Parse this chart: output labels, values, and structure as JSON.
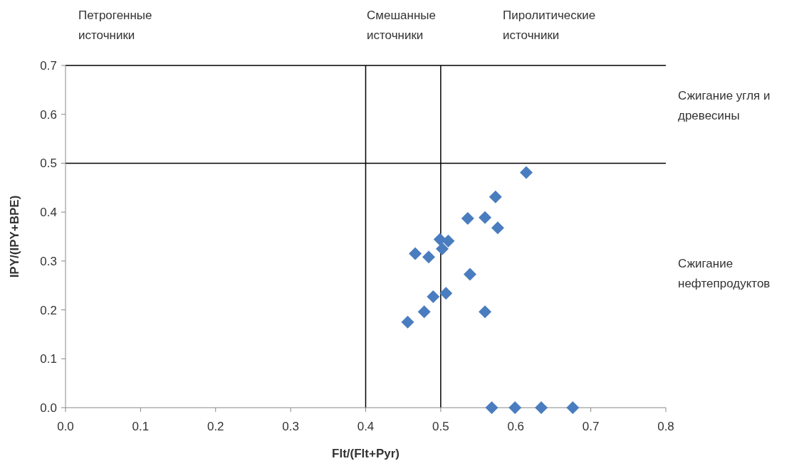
{
  "chart_data": {
    "type": "scatter",
    "xlabel": "Flt/(Flt+Pyr)",
    "ylabel": "IPY/(IPY+BPE)",
    "xlim": [
      0,
      0.8
    ],
    "xticks": [
      {
        "value": 0,
        "label": "0.0"
      },
      {
        "value": 0.1,
        "label": "0.1"
      },
      {
        "value": 0.2,
        "label": "0.2"
      },
      {
        "value": 0.3,
        "label": "0.3"
      },
      {
        "value": 0.4,
        "label": "0.4"
      },
      {
        "value": 0.5,
        "label": "0.5"
      },
      {
        "value": 0.6,
        "label": "0.6"
      },
      {
        "value": 0.7,
        "label": "0.7"
      },
      {
        "value": 0.8,
        "label": "0.8"
      }
    ],
    "ylim": [
      0,
      0.7
    ],
    "yticks": [
      {
        "value": 0,
        "label": "0.0"
      },
      {
        "value": 0.1,
        "label": "0.1"
      },
      {
        "value": 0.2,
        "label": "0.2"
      },
      {
        "value": 0.3,
        "label": "0.3"
      },
      {
        "value": 0.4,
        "label": "0.4"
      },
      {
        "value": 0.5,
        "label": "0.5"
      },
      {
        "value": 0.6,
        "label": "0.6"
      },
      {
        "value": 0.7,
        "label": "0.7"
      }
    ],
    "marker": "diamond",
    "series": [
      {
        "color": "#4a7dbf",
        "x": [
          0.614,
          0.573,
          0.536,
          0.559,
          0.576,
          0.499,
          0.51,
          0.502,
          0.466,
          0.484,
          0.539,
          0.507,
          0.49,
          0.478,
          0.559,
          0.456,
          0.568,
          0.599,
          0.634,
          0.676
        ],
        "values": [
          0.481,
          0.431,
          0.387,
          0.389,
          0.368,
          0.344,
          0.341,
          0.325,
          0.315,
          0.308,
          0.273,
          0.234,
          0.227,
          0.196,
          0.196,
          0.175,
          0,
          0,
          0,
          0
        ]
      }
    ],
    "ref_lines": [
      {
        "axis": "x",
        "value": 0.4,
        "color": "#000000"
      },
      {
        "axis": "x",
        "value": 0.5,
        "color": "#000000"
      },
      {
        "axis": "y",
        "value": 0.5,
        "color": "#000000"
      }
    ],
    "annotations": [
      "Петрогенные\nисточники",
      "Смешанные\nисточники",
      "Пиролитические\nисточники",
      "Сжигание угля и\nдревесины",
      "Сжигание\nнефтепродуктов"
    ]
  }
}
